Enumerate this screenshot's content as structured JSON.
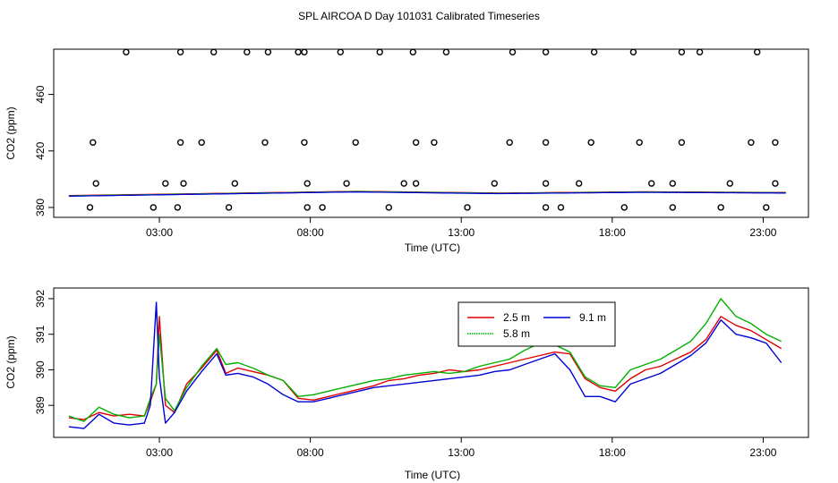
{
  "title": "SPL AIRCOA D  Day 101031  Calibrated Timeseries",
  "chart_data": [
    {
      "type": "scatter",
      "id": "top",
      "xlabel": "Time (UTC)",
      "ylabel": "CO2 (ppm)",
      "xlim": [
        -0.5,
        24.5
      ],
      "ylim": [
        373,
        492
      ],
      "xticks": [
        {
          "v": 3,
          "label": "03:00"
        },
        {
          "v": 8,
          "label": "08:00"
        },
        {
          "v": 13,
          "label": "13:00"
        },
        {
          "v": 18,
          "label": "18:00"
        },
        {
          "v": 23,
          "label": "23:00"
        }
      ],
      "yticks": [
        {
          "v": 380,
          "label": "380"
        },
        {
          "v": 420,
          "label": "420"
        },
        {
          "v": 460,
          "label": "460"
        }
      ],
      "outliers": {
        "y490": [
          1.9,
          3.7,
          4.8,
          5.9,
          6.6,
          7.6,
          7.8,
          9.0,
          10.3,
          11.4,
          12.5,
          14.7,
          15.8,
          17.4,
          18.7,
          20.3,
          20.9,
          22.8
        ],
        "y426": [
          0.8,
          3.7,
          4.4,
          6.5,
          7.8,
          9.5,
          11.5,
          12.1,
          14.6,
          15.8,
          17.3,
          18.9,
          20.3,
          22.6,
          23.4
        ],
        "y397": [
          0.9,
          3.2,
          3.8,
          5.5,
          7.9,
          9.2,
          11.1,
          11.5,
          14.1,
          15.8,
          16.9,
          19.3,
          20.0,
          21.9,
          23.4
        ],
        "y380": [
          0.7,
          2.8,
          3.6,
          5.3,
          7.9,
          8.4,
          10.6,
          13.2,
          15.8,
          16.3,
          18.4,
          20.0,
          21.6,
          23.1
        ]
      },
      "series_levels": [
        388,
        389.5,
        391,
        389.8,
        390.7,
        390.2
      ]
    },
    {
      "type": "line",
      "id": "bottom",
      "xlabel": "Time (UTC)",
      "ylabel": "CO2 (ppm)",
      "xlim": [
        -0.5,
        24.5
      ],
      "ylim": [
        388.1,
        392.3
      ],
      "xticks": [
        {
          "v": 3,
          "label": "03:00"
        },
        {
          "v": 8,
          "label": "08:00"
        },
        {
          "v": 13,
          "label": "13:00"
        },
        {
          "v": 18,
          "label": "18:00"
        },
        {
          "v": 23,
          "label": "23:00"
        }
      ],
      "yticks": [
        {
          "v": 389,
          "label": "389"
        },
        {
          "v": 390,
          "label": "390"
        },
        {
          "v": 391,
          "label": "391"
        },
        {
          "v": 392,
          "label": "392"
        }
      ],
      "legend": {
        "position": "top-right",
        "entries": [
          {
            "label": "2.5 m",
            "color": "#e00000"
          },
          {
            "label": "9.1 m",
            "color": "#0000d8"
          },
          {
            "label": "5.8 m",
            "color": "#00b000"
          }
        ]
      },
      "series": [
        {
          "name": "2.5 m",
          "color": "#e00000",
          "x": [
            0,
            0.5,
            1.0,
            1.5,
            2.0,
            2.5,
            2.7,
            2.9,
            3.0,
            3.2,
            3.5,
            3.9,
            4.4,
            4.9,
            5.2,
            5.6,
            6.1,
            6.6,
            7.1,
            7.6,
            8.1,
            8.6,
            9.1,
            9.6,
            10.1,
            10.6,
            11.1,
            11.6,
            12.1,
            12.6,
            13.1,
            13.6,
            14.1,
            14.6,
            15.1,
            15.6,
            16.1,
            16.6,
            17.1,
            17.6,
            18.1,
            18.6,
            19.1,
            19.6,
            20.1,
            20.6,
            21.1,
            21.6,
            22.1,
            22.6,
            23.1,
            23.6
          ],
          "y": [
            388.65,
            388.6,
            388.8,
            388.7,
            388.75,
            388.7,
            389.1,
            389.6,
            391.5,
            389.0,
            388.8,
            389.6,
            390.05,
            390.55,
            389.9,
            390.05,
            389.95,
            389.85,
            389.7,
            389.2,
            389.15,
            389.25,
            389.35,
            389.45,
            389.55,
            389.7,
            389.75,
            389.85,
            389.9,
            390.0,
            389.95,
            390.0,
            390.1,
            390.2,
            390.3,
            390.4,
            390.5,
            390.45,
            389.75,
            389.5,
            389.4,
            389.75,
            390.0,
            390.1,
            390.3,
            390.5,
            390.85,
            391.5,
            391.25,
            391.1,
            390.85,
            390.6
          ]
        },
        {
          "name": "5.8 m",
          "color": "#00b000",
          "x": [
            0,
            0.5,
            1.0,
            1.5,
            2.0,
            2.5,
            2.7,
            2.9,
            3.0,
            3.2,
            3.5,
            3.9,
            4.4,
            4.9,
            5.2,
            5.6,
            6.1,
            6.6,
            7.1,
            7.6,
            8.1,
            8.6,
            9.1,
            9.6,
            10.1,
            10.6,
            11.1,
            11.6,
            12.1,
            12.6,
            13.1,
            13.6,
            14.1,
            14.6,
            15.1,
            15.6,
            16.1,
            16.6,
            17.1,
            17.6,
            18.1,
            18.6,
            19.1,
            19.6,
            20.1,
            20.6,
            21.1,
            21.6,
            22.1,
            22.6,
            23.1,
            23.6
          ],
          "y": [
            388.7,
            388.55,
            388.95,
            388.75,
            388.65,
            388.7,
            389.2,
            389.6,
            391.0,
            389.2,
            388.85,
            389.5,
            390.1,
            390.6,
            390.15,
            390.2,
            390.05,
            389.85,
            389.7,
            389.25,
            389.3,
            389.4,
            389.5,
            389.6,
            389.7,
            389.75,
            389.85,
            389.9,
            389.95,
            389.9,
            389.95,
            390.1,
            390.2,
            390.3,
            390.55,
            390.75,
            390.7,
            390.5,
            389.8,
            389.55,
            389.5,
            390.0,
            390.15,
            390.3,
            390.55,
            390.8,
            391.3,
            392.0,
            391.5,
            391.3,
            391.0,
            390.8
          ]
        },
        {
          "name": "9.1 m",
          "color": "#0000d8",
          "x": [
            0,
            0.5,
            1.0,
            1.5,
            2.0,
            2.5,
            2.7,
            2.9,
            3.0,
            3.2,
            3.5,
            3.9,
            4.4,
            4.9,
            5.2,
            5.6,
            6.1,
            6.6,
            7.1,
            7.6,
            8.1,
            8.6,
            9.1,
            9.6,
            10.1,
            10.6,
            11.1,
            11.6,
            12.1,
            12.6,
            13.1,
            13.6,
            14.1,
            14.6,
            15.1,
            15.6,
            16.1,
            16.6,
            17.1,
            17.6,
            18.1,
            18.6,
            19.1,
            19.6,
            20.1,
            20.6,
            21.1,
            21.6,
            22.1,
            22.6,
            23.1,
            23.6
          ],
          "y": [
            388.4,
            388.35,
            388.75,
            388.5,
            388.45,
            388.5,
            389.0,
            391.9,
            389.8,
            388.5,
            388.8,
            389.4,
            389.95,
            390.45,
            389.85,
            389.9,
            389.8,
            389.6,
            389.3,
            389.1,
            389.1,
            389.2,
            389.3,
            389.4,
            389.5,
            389.55,
            389.6,
            389.65,
            389.7,
            389.75,
            389.8,
            389.85,
            389.95,
            390.0,
            390.15,
            390.3,
            390.45,
            390.0,
            389.25,
            389.25,
            389.1,
            389.6,
            389.75,
            389.9,
            390.15,
            390.4,
            390.75,
            391.4,
            391.0,
            390.9,
            390.75,
            390.2
          ]
        }
      ]
    }
  ]
}
